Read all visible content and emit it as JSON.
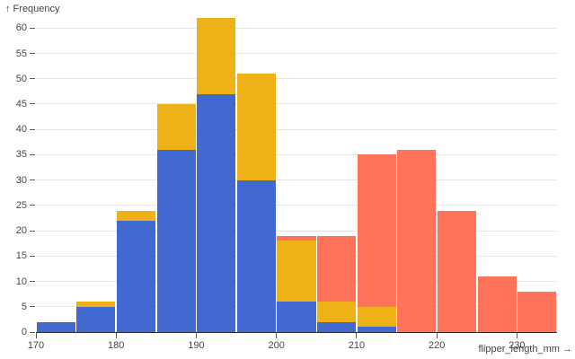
{
  "figure": {
    "y_axis_title": "↑ Frequency",
    "x_axis_title": "flipper_length_mm →"
  },
  "chart_data": {
    "type": "bar",
    "subtype": "stacked-histogram",
    "title": "",
    "xlabel": "flipper_length_mm",
    "ylabel": "Frequency",
    "x_domain": [
      170,
      235
    ],
    "y_domain": [
      0,
      62
    ],
    "bin_width": 5,
    "bin_starts": [
      170,
      175,
      180,
      185,
      190,
      195,
      200,
      205,
      210,
      215,
      220,
      225,
      230
    ],
    "x_ticks": [
      170,
      180,
      190,
      200,
      210,
      220,
      230
    ],
    "y_ticks": [
      0,
      5,
      10,
      15,
      20,
      25,
      30,
      35,
      40,
      45,
      50,
      55,
      60
    ],
    "grid": true,
    "legend_position": "none",
    "stack_order_bottom_to_top": [
      "blue",
      "orange",
      "red"
    ],
    "series": [
      {
        "name": "blue",
        "color": "#4269d0",
        "values": [
          2,
          5,
          22,
          36,
          47,
          30,
          6,
          2,
          1,
          0,
          0,
          0,
          0
        ]
      },
      {
        "name": "orange",
        "color": "#efb118",
        "values": [
          0,
          1,
          2,
          9,
          15,
          21,
          12,
          4,
          4,
          0,
          0,
          0,
          0
        ]
      },
      {
        "name": "red",
        "color": "#ff725c",
        "values": [
          0,
          0,
          0,
          0,
          0,
          0,
          1,
          13,
          30,
          36,
          24,
          11,
          8
        ]
      }
    ],
    "stack_totals": [
      2,
      6,
      24,
      45,
      62,
      51,
      19,
      19,
      35,
      36,
      24,
      11,
      8
    ]
  },
  "style": {
    "background": "#ffffff",
    "grid_color": "#e7e7e7",
    "axis_text_color": "#454545",
    "axis_line_color": "#2b2b2b",
    "tick_mark_color": "#5a5a5a"
  }
}
